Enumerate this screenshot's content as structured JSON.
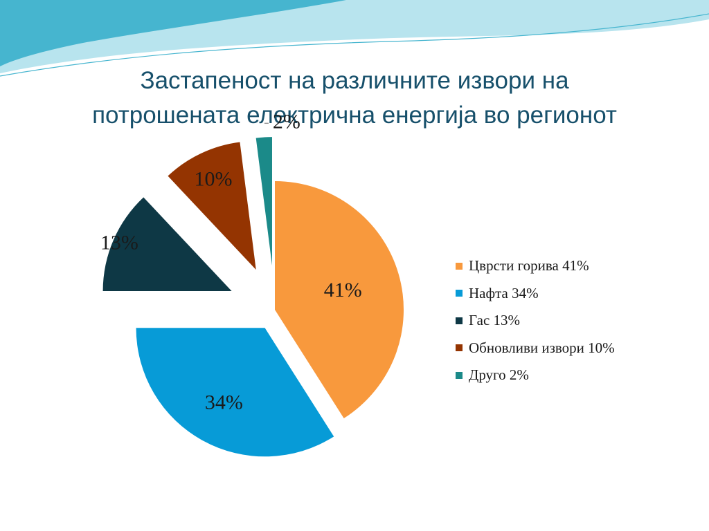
{
  "title": {
    "line1": "Застапеност на различните извори на",
    "line2": "потрошената електрична енергија во регионот"
  },
  "colors": {
    "title": "#17506b",
    "wave_dark": "#46b5cf",
    "wave_light": "#b8e4ee"
  },
  "chart_data": {
    "type": "pie",
    "start_angle_deg": 0,
    "exploded": true,
    "legend_position": "right",
    "slices": [
      {
        "label": "Цврсти горива",
        "value": 41,
        "data_label": "41%",
        "legend_text": "Цврсти горива 41%",
        "color": "#f8993d"
      },
      {
        "label": "Нафта",
        "value": 34,
        "data_label": "34%",
        "legend_text": "Нафта 34%",
        "color": "#079bd7"
      },
      {
        "label": "Гас",
        "value": 13,
        "data_label": "13%",
        "legend_text": "Гас 13%",
        "color": "#0e3845"
      },
      {
        "label": "Обновливи извори",
        "value": 10,
        "data_label": "10%",
        "legend_text": "Обновливи извори 10%",
        "color": "#943401"
      },
      {
        "label": "Друго",
        "value": 2,
        "data_label": "2%",
        "legend_text": "Друго 2%",
        "color": "#1b8a89"
      }
    ]
  }
}
